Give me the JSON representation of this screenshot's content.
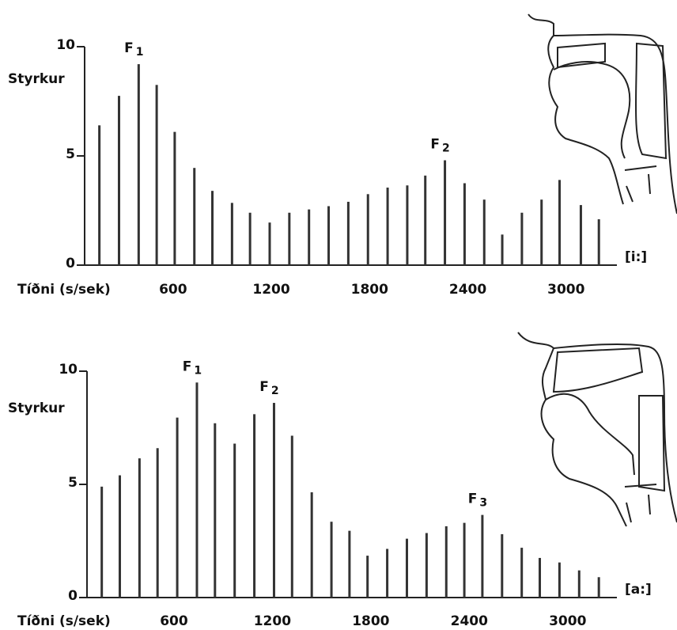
{
  "chart_data": [
    {
      "type": "bar",
      "y_label": "Styrkur",
      "x_label": "Tíðni (s/sek)",
      "vowel": "[i:]",
      "x": [
        150,
        270,
        390,
        500,
        610,
        730,
        840,
        960,
        1070,
        1190,
        1310,
        1430,
        1550,
        1670,
        1790,
        1910,
        2030,
        2140,
        2260,
        2380,
        2500,
        2610,
        2730,
        2850,
        2960,
        3090,
        3200
      ],
      "values": [
        6.4,
        7.75,
        9.2,
        8.25,
        6.1,
        4.45,
        3.4,
        2.85,
        2.4,
        1.95,
        2.4,
        2.55,
        2.7,
        2.9,
        3.25,
        3.55,
        3.65,
        4.1,
        4.8,
        3.75,
        3.0,
        1.4,
        2.4,
        3.0,
        3.9,
        2.75,
        2.1
      ],
      "color": "#333333",
      "xlim": [
        60,
        3310
      ],
      "ylim": [
        0,
        10
      ],
      "xticks": [
        600,
        1200,
        1800,
        2400,
        3000
      ],
      "yticks": [
        0,
        5,
        10
      ],
      "annotations": [
        {
          "label": "F",
          "subscript": "1"
        },
        {
          "label": "F",
          "subscript": "2"
        }
      ]
    },
    {
      "type": "bar",
      "y_label": "Styrkur",
      "x_label": "Tíðni (s/sek)",
      "vowel": "[a:]",
      "x": [
        160,
        270,
        390,
        500,
        620,
        740,
        850,
        970,
        1090,
        1210,
        1320,
        1440,
        1560,
        1670,
        1780,
        1900,
        2020,
        2140,
        2260,
        2370,
        2480,
        2600,
        2720,
        2830,
        2950,
        3070,
        3190
      ],
      "values": [
        4.9,
        5.4,
        6.15,
        6.6,
        7.95,
        9.5,
        7.7,
        6.8,
        8.1,
        8.6,
        7.15,
        4.65,
        3.35,
        2.95,
        1.85,
        2.15,
        2.6,
        2.85,
        3.15,
        3.3,
        3.65,
        2.8,
        2.2,
        1.75,
        1.55,
        1.2,
        0.9
      ],
      "color": "#333333",
      "xlim": [
        70,
        3300
      ],
      "ylim": [
        0,
        10
      ],
      "xticks": [
        600,
        1200,
        1800,
        2400,
        3000
      ],
      "yticks": [
        0,
        5,
        10
      ],
      "annotations": [
        {
          "label": "F",
          "subscript": "1"
        },
        {
          "label": "F",
          "subscript": "2"
        },
        {
          "label": "F",
          "subscript": "3"
        }
      ]
    }
  ]
}
